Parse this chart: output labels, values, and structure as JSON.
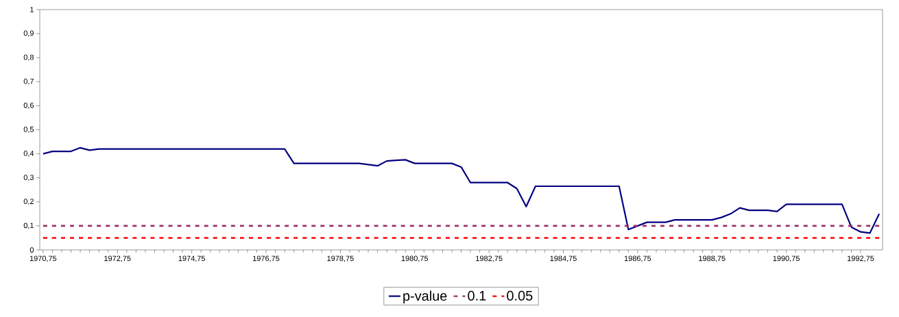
{
  "chart_data": {
    "type": "line",
    "marker": "none",
    "legend": "bottom",
    "xlim": [
      1970.66,
      1993.34
    ],
    "xticks": [
      {
        "value": 1970.75,
        "label": "1970,75"
      },
      {
        "value": 1972.75,
        "label": "1972,75"
      },
      {
        "value": 1974.75,
        "label": "1974,75"
      },
      {
        "value": 1976.75,
        "label": "1976,75"
      },
      {
        "value": 1978.75,
        "label": "1978,75"
      },
      {
        "value": 1980.75,
        "label": "1980,75"
      },
      {
        "value": 1982.75,
        "label": "1982,75"
      },
      {
        "value": 1984.75,
        "label": "1984,75"
      },
      {
        "value": 1986.75,
        "label": "1986,75"
      },
      {
        "value": 1988.75,
        "label": "1988,75"
      },
      {
        "value": 1990.75,
        "label": "1990,75"
      },
      {
        "value": 1992.75,
        "label": "1992,75"
      }
    ],
    "ylim": [
      0,
      1
    ],
    "yticks": [
      0,
      {
        "value": 0.1,
        "label": "0,1"
      },
      {
        "value": 0.2,
        "label": "0,2"
      },
      {
        "value": 0.3,
        "label": "0,3"
      },
      {
        "value": 0.4,
        "label": "0,4"
      },
      {
        "value": 0.5,
        "label": "0,5"
      },
      {
        "value": 0.6,
        "label": "0,6"
      },
      {
        "value": 0.7,
        "label": "0,7"
      },
      {
        "value": 0.8,
        "label": "0,8"
      },
      {
        "value": 0.9,
        "label": "0,9"
      },
      1
    ],
    "series": [
      {
        "name": "p-value",
        "color": "#000080",
        "line_style": "solid",
        "x": [
          1970.75,
          1971.0,
          1971.25,
          1971.5,
          1971.75,
          1972.0,
          1972.25,
          1972.5,
          1972.75,
          1973.0,
          1973.25,
          1973.5,
          1973.75,
          1974.0,
          1974.25,
          1974.5,
          1974.75,
          1975.0,
          1975.25,
          1975.5,
          1975.75,
          1976.0,
          1976.25,
          1976.5,
          1976.75,
          1977.0,
          1977.25,
          1977.5,
          1977.75,
          1978.0,
          1978.25,
          1978.5,
          1978.75,
          1979.0,
          1979.25,
          1979.5,
          1979.75,
          1980.0,
          1980.25,
          1980.5,
          1980.75,
          1981.0,
          1981.25,
          1981.5,
          1981.75,
          1982.0,
          1982.25,
          1982.5,
          1982.75,
          1983.0,
          1983.25,
          1983.5,
          1983.75,
          1984.0,
          1984.25,
          1984.5,
          1984.75,
          1985.0,
          1985.25,
          1985.5,
          1985.75,
          1986.0,
          1986.25,
          1986.5,
          1986.75,
          1987.0,
          1987.25,
          1987.5,
          1987.75,
          1988.0,
          1988.25,
          1988.5,
          1988.75,
          1989.0,
          1989.25,
          1989.5,
          1989.75,
          1990.0,
          1990.25,
          1990.5,
          1990.75,
          1991.0,
          1991.25,
          1991.5,
          1991.75,
          1992.0,
          1992.25,
          1992.5,
          1992.75,
          1993.0,
          1993.25
        ],
        "values": [
          0.4,
          0.41,
          0.41,
          0.41,
          0.425,
          0.415,
          0.42,
          0.42,
          0.42,
          0.42,
          0.42,
          0.42,
          0.42,
          0.42,
          0.42,
          0.42,
          0.42,
          0.42,
          0.42,
          0.42,
          0.42,
          0.42,
          0.42,
          0.42,
          0.42,
          0.42,
          0.42,
          0.36,
          0.36,
          0.36,
          0.36,
          0.36,
          0.36,
          0.36,
          0.36,
          0.355,
          0.35,
          0.37,
          0.373,
          0.375,
          0.36,
          0.36,
          0.36,
          0.36,
          0.36,
          0.345,
          0.28,
          0.28,
          0.28,
          0.28,
          0.28,
          0.255,
          0.18,
          0.265,
          0.265,
          0.265,
          0.265,
          0.265,
          0.265,
          0.265,
          0.265,
          0.265,
          0.265,
          0.085,
          0.1,
          0.115,
          0.115,
          0.115,
          0.125,
          0.125,
          0.125,
          0.125,
          0.125,
          0.135,
          0.15,
          0.175,
          0.165,
          0.165,
          0.165,
          0.16,
          0.19,
          0.19,
          0.19,
          0.19,
          0.19,
          0.19,
          0.19,
          0.095,
          0.075,
          0.07,
          0.15
        ]
      },
      {
        "name": "0.1",
        "color": "#993366",
        "line_style": "dashed",
        "x": [
          1970.75,
          1993.25
        ],
        "values": [
          0.1,
          0.1
        ]
      },
      {
        "name": "0.05",
        "color": "#ff0000",
        "line_style": "dashed",
        "x": [
          1970.75,
          1993.25
        ],
        "values": [
          0.05,
          0.05
        ]
      }
    ]
  }
}
